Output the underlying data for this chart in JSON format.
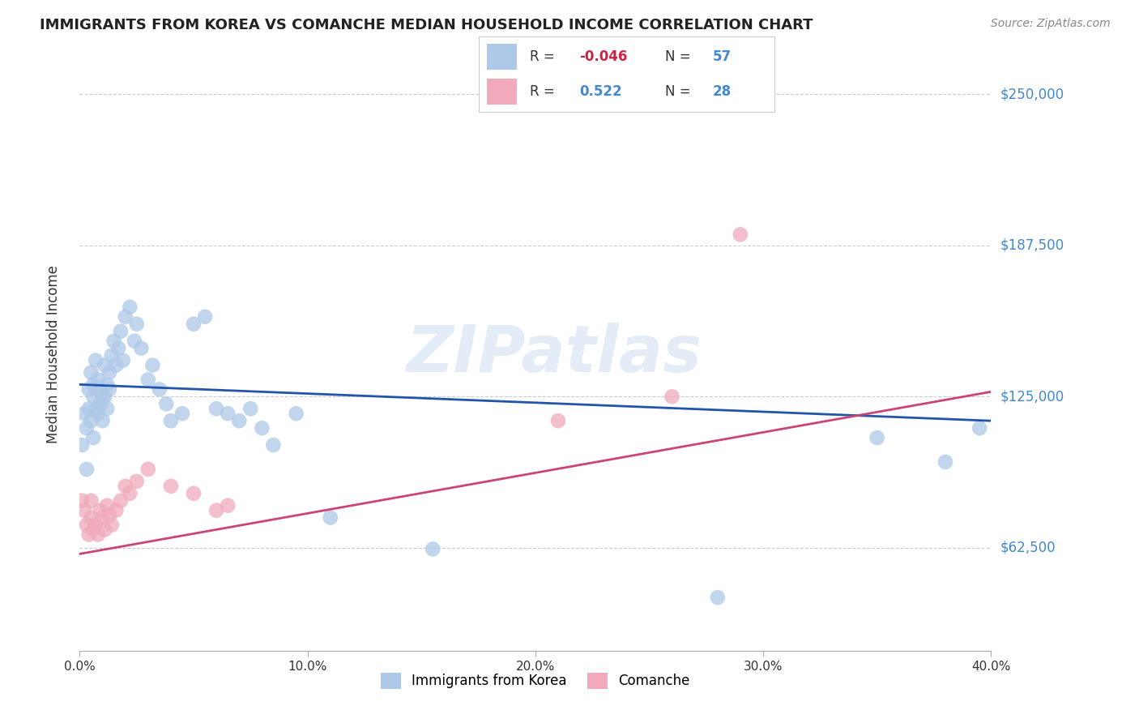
{
  "title": "IMMIGRANTS FROM KOREA VS COMANCHE MEDIAN HOUSEHOLD INCOME CORRELATION CHART",
  "source": "Source: ZipAtlas.com",
  "ylabel": "Median Household Income",
  "y_ticks": [
    62500,
    125000,
    187500,
    250000
  ],
  "y_tick_labels": [
    "$62,500",
    "$125,000",
    "$187,500",
    "$250,000"
  ],
  "x_ticks": [
    0.0,
    0.1,
    0.2,
    0.3,
    0.4
  ],
  "x_tick_labels": [
    "0.0%",
    "10.0%",
    "20.0%",
    "30.0%",
    "40.0%"
  ],
  "x_min": 0.0,
  "x_max": 0.4,
  "y_min": 20000,
  "y_max": 265000,
  "korea_R": -0.046,
  "korea_N": 57,
  "comanche_R": 0.522,
  "comanche_N": 28,
  "korea_color": "#adc8e8",
  "korea_line_color": "#2255aa",
  "comanche_color": "#f0aabb",
  "comanche_line_color": "#cc4477",
  "background_color": "#ffffff",
  "grid_color": "#cccccc",
  "watermark": "ZIPatlas",
  "korea_x": [
    0.001,
    0.002,
    0.003,
    0.003,
    0.004,
    0.004,
    0.005,
    0.005,
    0.006,
    0.006,
    0.006,
    0.007,
    0.007,
    0.008,
    0.008,
    0.009,
    0.009,
    0.01,
    0.01,
    0.011,
    0.011,
    0.012,
    0.012,
    0.013,
    0.013,
    0.014,
    0.015,
    0.016,
    0.017,
    0.018,
    0.019,
    0.02,
    0.022,
    0.024,
    0.025,
    0.027,
    0.03,
    0.032,
    0.035,
    0.038,
    0.04,
    0.045,
    0.05,
    0.055,
    0.06,
    0.065,
    0.07,
    0.075,
    0.08,
    0.085,
    0.095,
    0.11,
    0.155,
    0.28,
    0.35,
    0.38,
    0.395
  ],
  "korea_y": [
    105000,
    118000,
    112000,
    95000,
    128000,
    120000,
    115000,
    135000,
    125000,
    130000,
    108000,
    120000,
    140000,
    132000,
    118000,
    128000,
    122000,
    125000,
    115000,
    138000,
    125000,
    130000,
    120000,
    135000,
    128000,
    142000,
    148000,
    138000,
    145000,
    152000,
    140000,
    158000,
    162000,
    148000,
    155000,
    145000,
    132000,
    138000,
    128000,
    122000,
    115000,
    118000,
    155000,
    158000,
    120000,
    118000,
    115000,
    120000,
    112000,
    105000,
    118000,
    75000,
    62000,
    42000,
    108000,
    98000,
    112000
  ],
  "comanche_x": [
    0.001,
    0.002,
    0.003,
    0.004,
    0.005,
    0.005,
    0.006,
    0.007,
    0.008,
    0.009,
    0.01,
    0.011,
    0.012,
    0.013,
    0.014,
    0.016,
    0.018,
    0.02,
    0.022,
    0.025,
    0.03,
    0.04,
    0.05,
    0.06,
    0.065,
    0.21,
    0.26,
    0.29
  ],
  "comanche_y": [
    82000,
    78000,
    72000,
    68000,
    75000,
    82000,
    70000,
    72000,
    68000,
    78000,
    75000,
    70000,
    80000,
    76000,
    72000,
    78000,
    82000,
    88000,
    85000,
    90000,
    95000,
    88000,
    85000,
    78000,
    80000,
    115000,
    125000,
    192000
  ]
}
